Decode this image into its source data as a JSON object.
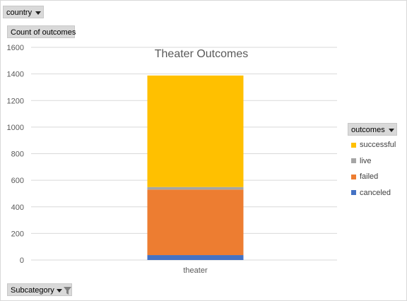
{
  "filters": {
    "country_label": "country",
    "count_label": "Count of outcomes",
    "outcomes_label": "outcomes",
    "subcategory_label": "Subcategory"
  },
  "colors": {
    "successful": "#ffc000",
    "live": "#a5a5a5",
    "failed": "#ed7d31",
    "canceled": "#4472c4",
    "grid": "#d9d9d9"
  },
  "chart_data": {
    "type": "bar",
    "stacked": true,
    "title": "Theater Outcomes",
    "categories": [
      "theater"
    ],
    "series": [
      {
        "name": "canceled",
        "values": [
          37
        ]
      },
      {
        "name": "failed",
        "values": [
          493
        ]
      },
      {
        "name": "live",
        "values": [
          19
        ]
      },
      {
        "name": "successful",
        "values": [
          839
        ]
      }
    ],
    "ylim": [
      0,
      1600
    ],
    "yticks": [
      0,
      200,
      400,
      600,
      800,
      1000,
      1200,
      1400,
      1600
    ],
    "grid": true,
    "legend_position": "right",
    "legend_order": [
      "successful",
      "live",
      "failed",
      "canceled"
    ]
  }
}
